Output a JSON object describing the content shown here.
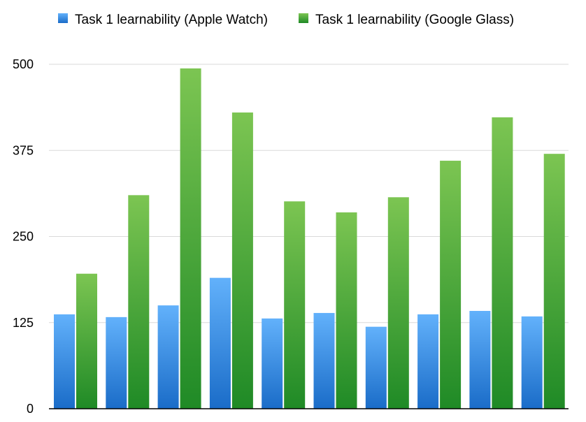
{
  "chart_data": {
    "type": "bar",
    "categories": [
      "",
      "",
      "",
      "",
      "",
      "",
      "",
      "",
      "",
      ""
    ],
    "series": [
      {
        "name": "Task 1 learnability (Apple Watch)",
        "color": "#3d8fe8",
        "values": [
          137,
          133,
          150,
          190,
          131,
          139,
          119,
          137,
          142,
          134
        ]
      },
      {
        "name": "Task 1 learnability (Google Glass)",
        "color": "#3fa23f",
        "values": [
          196,
          310,
          494,
          430,
          301,
          285,
          307,
          360,
          423,
          370
        ]
      }
    ],
    "yticks": [
      0,
      125,
      250,
      375,
      500
    ],
    "ylim": [
      0,
      500
    ],
    "grid": true,
    "legend": "top-left"
  }
}
